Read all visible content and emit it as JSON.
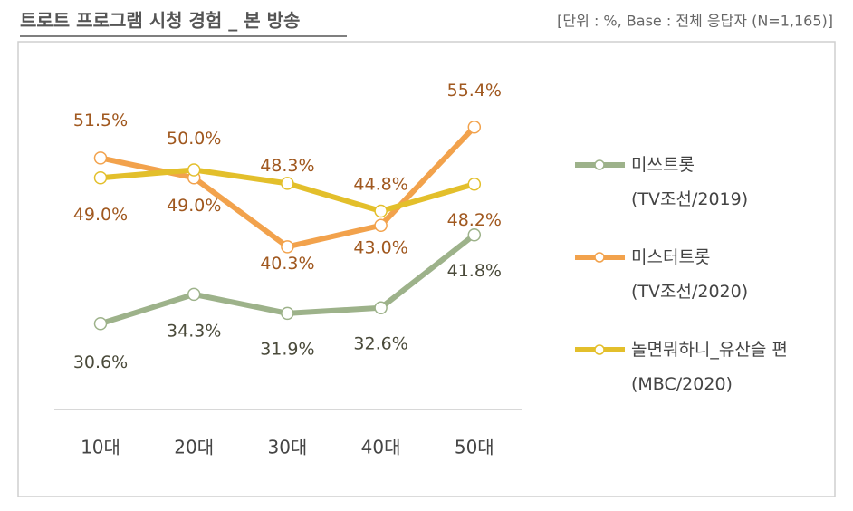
{
  "chart_data": {
    "type": "line",
    "title": "트로트 프로그램 시청 경험 _ 본 방송",
    "subtitle": "[단위 : %, Base : 전체 응답자 (N=1,165)]",
    "categories": [
      "10대",
      "20대",
      "30대",
      "40대",
      "50대"
    ],
    "ylim": [
      20,
      60
    ],
    "series": [
      {
        "name": "미쓰트롯\n(TV조선/2019)",
        "color": "#9db28a",
        "label_color": "#4a4a3a",
        "values": [
          30.6,
          34.3,
          31.9,
          32.6,
          41.8
        ],
        "value_labels": [
          "30.6%",
          "34.3%",
          "31.9%",
          "32.6%",
          "41.8%"
        ]
      },
      {
        "name": "미스터트롯\n(TV조선/2020)",
        "color": "#f2a24c",
        "label_color": "#a0581f",
        "values": [
          51.5,
          49.0,
          40.3,
          43.0,
          55.4
        ],
        "value_labels": [
          "51.5%",
          "49.0%",
          "40.3%",
          "43.0%",
          "55.4%"
        ]
      },
      {
        "name": "놀면뭐하니_유산슬 편\n(MBC/2020)",
        "color": "#e3bf2b",
        "label_color": "#a0581f",
        "values": [
          49.0,
          50.0,
          48.3,
          44.8,
          48.2
        ],
        "value_labels": [
          "49.0%",
          "50.0%",
          "48.3%",
          "44.8%",
          "48.2%"
        ]
      }
    ],
    "legend": "right"
  }
}
